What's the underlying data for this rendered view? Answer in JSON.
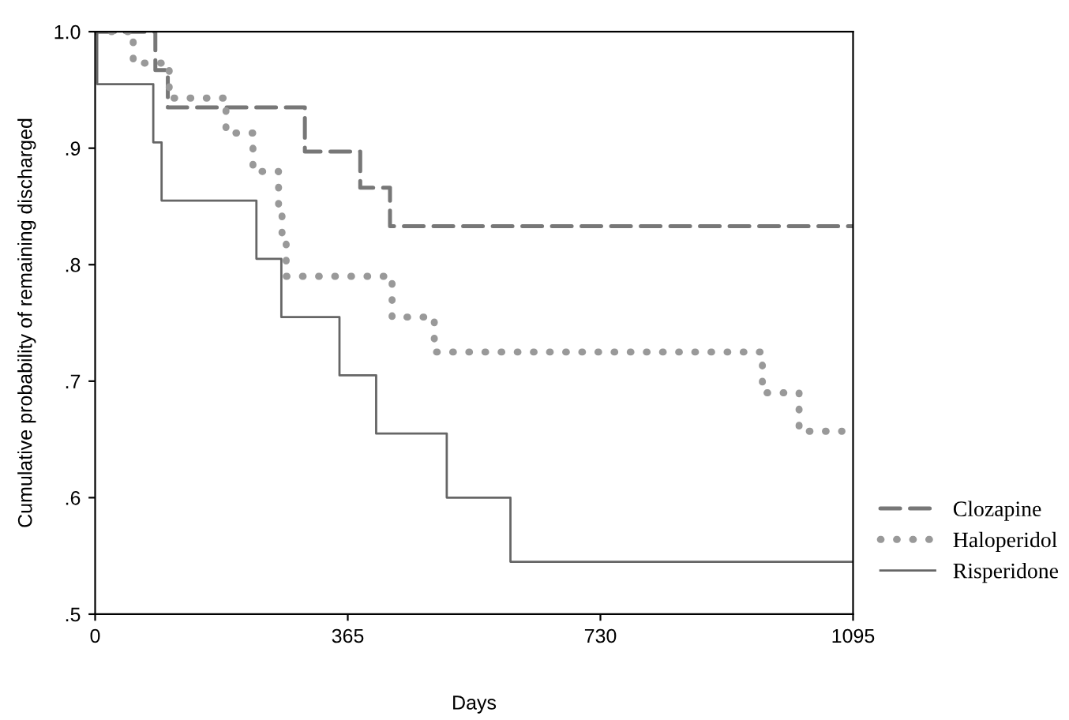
{
  "chart_data": {
    "type": "step",
    "xlabel": "Days",
    "ylabel": "Cumulative probability of remaining discharged",
    "xlim": [
      0,
      1095
    ],
    "xticks": [
      0,
      365,
      730,
      1095
    ],
    "ylim": [
      0.5,
      1.0
    ],
    "yticks": [
      {
        "value": 0.5,
        "label": ".5"
      },
      {
        "value": 0.6,
        "label": ".6"
      },
      {
        "value": 0.7,
        "label": ".7"
      },
      {
        "value": 0.8,
        "label": ".8"
      },
      {
        "value": 0.9,
        "label": ".9"
      },
      {
        "value": 1.0,
        "label": "1.0"
      }
    ],
    "grid": false,
    "legend": "right",
    "series": [
      {
        "name": "Clozapine",
        "color": "#777777",
        "line_style": "dashed",
        "x": [
          0,
          87,
          105,
          303,
          383,
          426,
          1095
        ],
        "values": [
          1.0,
          0.967,
          0.935,
          0.897,
          0.866,
          0.833,
          0.833
        ]
      },
      {
        "name": "Haloperidol",
        "color": "#999999",
        "line_style": "dotted",
        "x": [
          0,
          55,
          107,
          189,
          228,
          265,
          270,
          276,
          429,
          490,
          964,
          1017,
          1079
        ],
        "values": [
          1.0,
          0.973,
          0.943,
          0.913,
          0.88,
          0.85,
          0.82,
          0.79,
          0.755,
          0.725,
          0.69,
          0.657,
          0.657
        ]
      },
      {
        "name": "Risperidone",
        "color": "#666666",
        "line_style": "solid",
        "x": [
          0,
          3,
          84,
          96,
          233,
          269,
          353,
          406,
          508,
          600,
          1095
        ],
        "values": [
          1.0,
          0.955,
          0.905,
          0.855,
          0.805,
          0.755,
          0.705,
          0.655,
          0.6,
          0.545,
          0.545
        ]
      }
    ]
  }
}
